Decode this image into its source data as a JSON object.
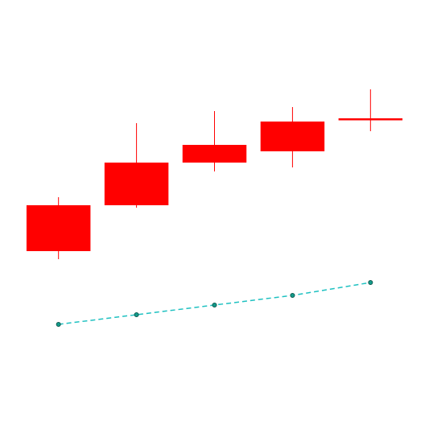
{
  "chart_data": {
    "type": "candlestick",
    "title": "",
    "xlabel": "",
    "ylabel": "",
    "grid": false,
    "legend": "none",
    "colors": {
      "candle": "#ff0000",
      "line": "#1fc1c1",
      "marker_fill": "#139a8a",
      "marker_edge": "#0b4f45"
    },
    "candles": [
      {
        "x": 1,
        "open": 22.8,
        "close": 17.1,
        "high": 23.8,
        "low": 16.1
      },
      {
        "x": 2,
        "open": 28.1,
        "close": 22.8,
        "high": 33.0,
        "low": 22.5
      },
      {
        "x": 3,
        "open": 30.3,
        "close": 28.1,
        "high": 34.5,
        "low": 27.0
      },
      {
        "x": 4,
        "open": 33.2,
        "close": 29.5,
        "high": 35.0,
        "low": 27.5
      },
      {
        "x": 5,
        "open": 33.6,
        "close": 33.4,
        "high": 37.2,
        "low": 32.0
      }
    ],
    "line_series": {
      "x": [
        1,
        2,
        3,
        4,
        5
      ],
      "values": [
        8.0,
        9.2,
        10.4,
        11.6,
        13.2
      ]
    },
    "xlim": [
      0.25,
      5.75
    ],
    "ylim": [
      -5,
      48.3
    ]
  }
}
